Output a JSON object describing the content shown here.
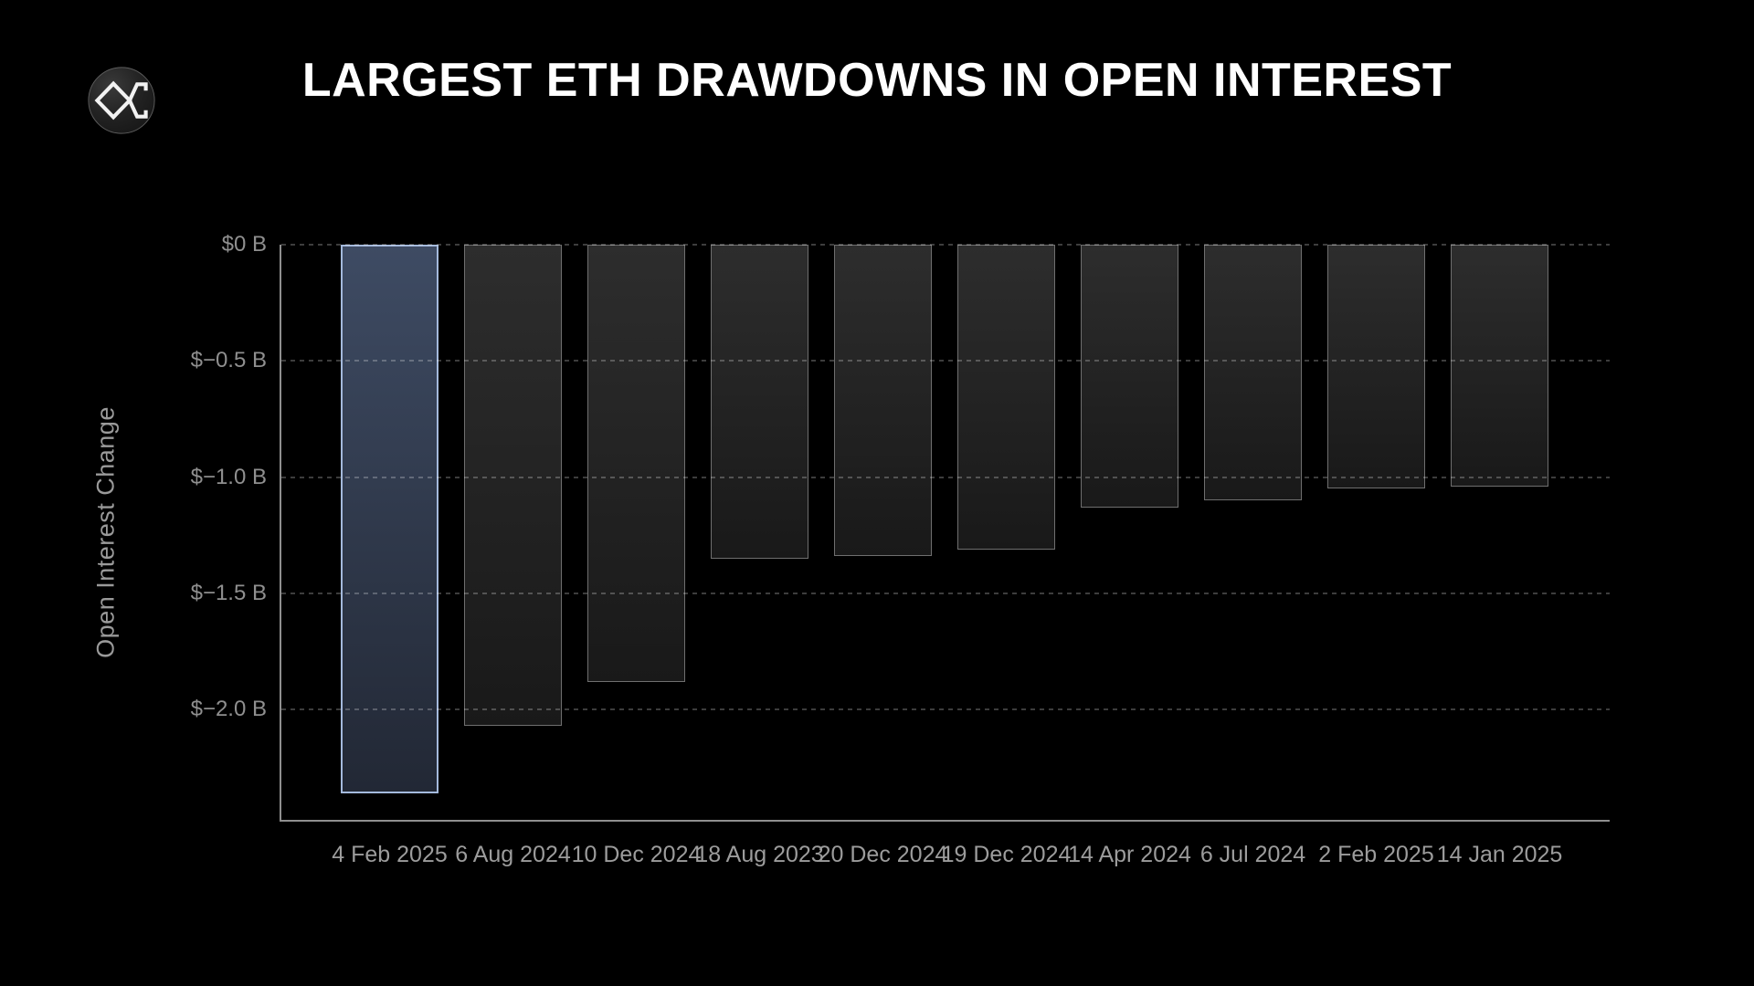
{
  "header": {
    "title": "LARGEST ETH DRAWDOWNS IN OPEN INTEREST",
    "logo_icon": "diamond-sigma-logo"
  },
  "chart_data": {
    "type": "bar",
    "title": "LARGEST ETH DRAWDOWNS IN OPEN INTEREST",
    "categories": [
      "4 Feb 2025",
      "6 Aug 2024",
      "10 Dec 2024",
      "18 Aug 2023",
      "20 Dec 2024",
      "19 Dec 2024",
      "14 Apr 2024",
      "6 Jul 2024",
      "2 Feb 2025",
      "14 Jan 2025"
    ],
    "values": [
      -2.36,
      -2.07,
      -1.88,
      -1.35,
      -1.34,
      -1.31,
      -1.13,
      -1.1,
      -1.05,
      -1.04
    ],
    "unit": "billions USD",
    "xlabel": "",
    "ylabel": "Open Interest Change",
    "ylim": [
      -2.475,
      0
    ],
    "yticks": [
      {
        "value": 0,
        "label": "$0 B"
      },
      {
        "value": -0.5,
        "label": "$−0.5 B"
      },
      {
        "value": -1.0,
        "label": "$−1.0 B"
      },
      {
        "value": -1.5,
        "label": "$−1.5 B"
      },
      {
        "value": -2.0,
        "label": "$−2.0 B"
      }
    ],
    "grid": "dashed horizontal, on",
    "legend": "none",
    "highlight_index": 0,
    "colors": {
      "background": "#000000",
      "title_text": "#ffffff",
      "bar_fill_top": "#2d2d2d",
      "bar_fill_bottom": "#191919",
      "bar_border": "#6f6f6f",
      "highlight_fill_top": "#3e4b63",
      "highlight_fill_bottom": "#222835",
      "highlight_border": "#a4b9dc",
      "grid_dash": "rgba(255,255,255,0.24)",
      "axis_line": "#8f8f8f",
      "y_tick_text": "#8f8f8f",
      "x_tick_text": "#9c9c9c",
      "y_title_text": "#9a9a9a"
    }
  }
}
